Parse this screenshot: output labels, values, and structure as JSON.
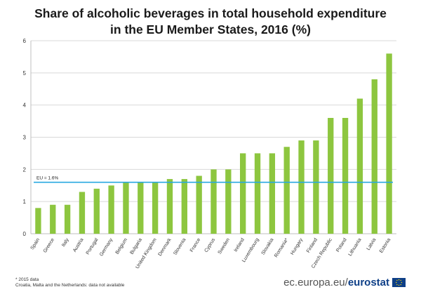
{
  "title": {
    "line1": "Share of alcoholic beverages in total household expenditure",
    "line2": "in the EU Member States, 2016 (%)"
  },
  "chart_data": {
    "type": "bar",
    "title": "Share of alcoholic beverages in total household expenditure in the EU Member States, 2016 (%)",
    "xlabel": "",
    "ylabel": "",
    "ylim": [
      0,
      6
    ],
    "yticks": [
      "0",
      "1",
      "2",
      "3",
      "4",
      "5",
      "6"
    ],
    "grid": true,
    "bar_color": "#8dc63f",
    "categories": [
      "Spain",
      "Greece",
      "Italy",
      "Austria",
      "Portugal",
      "Germany",
      "Belgium",
      "Bulgaria",
      "United Kingdom",
      "Denmark",
      "Slovenia",
      "France",
      "Cyprus",
      "Sweden",
      "Ireland",
      "Luxembourg",
      "Slovakia",
      "Romania*",
      "Hungary",
      "Finland",
      "Czech Republic",
      "Poland",
      "Lithuania",
      "Latvia",
      "Estonia"
    ],
    "values": [
      0.8,
      0.9,
      0.9,
      1.3,
      1.4,
      1.5,
      1.6,
      1.6,
      1.6,
      1.7,
      1.7,
      1.8,
      2.0,
      2.0,
      2.5,
      2.5,
      2.5,
      2.7,
      2.9,
      2.9,
      3.6,
      3.6,
      4.2,
      4.8,
      5.6
    ],
    "reference_line": {
      "label": "EU = 1.6%",
      "value": 1.6,
      "color": "#29a8e0"
    }
  },
  "footnote": {
    "line1": "* 2015 data",
    "line2": "Croatia, Malta and the Netherlands:  data not available"
  },
  "source": {
    "site": "ec.europa.eu/",
    "brand": "eurostat"
  }
}
